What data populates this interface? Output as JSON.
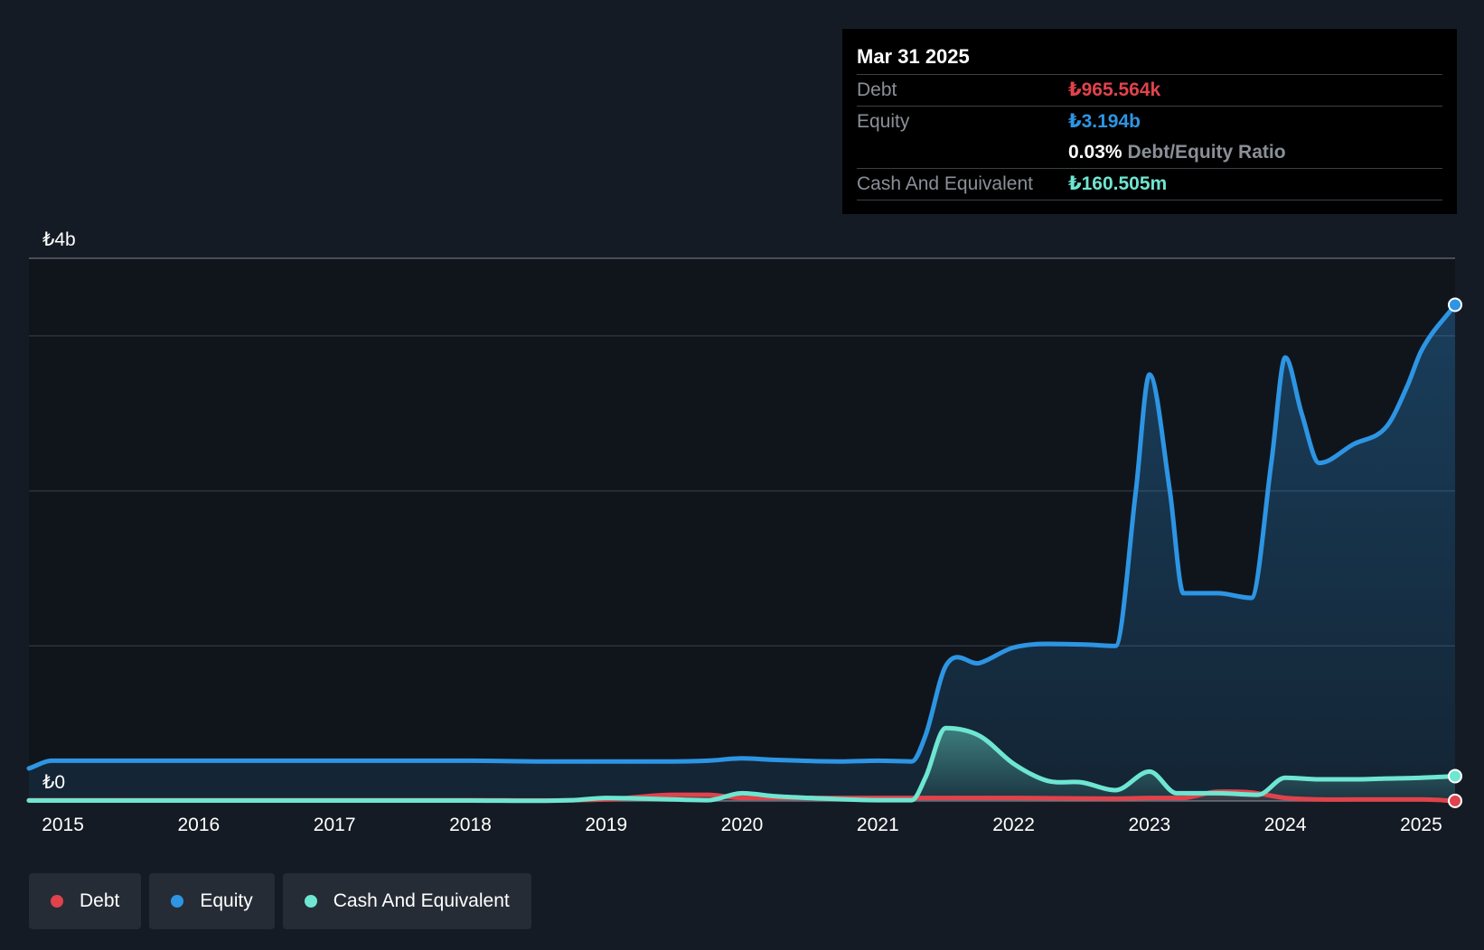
{
  "colors": {
    "background": "#151b24",
    "plot_background": "#10151c",
    "debt": "#e0434b",
    "equity": "#2d95e3",
    "cash": "#6ee6d1",
    "grid": "#2c323b"
  },
  "tooltip": {
    "date": "Mar 31 2025",
    "debt_label": "Debt",
    "debt_value": "₺965.564k",
    "equity_label": "Equity",
    "equity_value": "₺3.194b",
    "ratio_value": "0.03%",
    "ratio_label": "Debt/Equity Ratio",
    "cash_label": "Cash And Equivalent",
    "cash_value": "₺160.505m"
  },
  "legend": [
    {
      "label": "Debt",
      "color": "#e0434b"
    },
    {
      "label": "Equity",
      "color": "#2d95e3"
    },
    {
      "label": "Cash And Equivalent",
      "color": "#6ee6d1"
    }
  ],
  "chart_data": {
    "type": "area",
    "title": "",
    "xlabel": "",
    "ylabel": "",
    "y_unit": "₺ billions",
    "ylim": [
      0,
      3.5
    ],
    "y_tick_labels": [
      {
        "value": 0,
        "label": "₺0"
      },
      {
        "value": 3.5,
        "label": "₺4b"
      }
    ],
    "x_range": [
      2014.75,
      2025.25
    ],
    "x_ticks": [
      2015,
      2016,
      2017,
      2018,
      2019,
      2020,
      2021,
      2022,
      2023,
      2024,
      2025
    ],
    "gridlines": [
      0,
      1.0,
      2.0,
      3.0,
      3.5
    ],
    "legend_position": "bottom-left",
    "series": [
      {
        "name": "Equity",
        "points": [
          [
            2014.75,
            0.21
          ],
          [
            2014.92,
            0.26
          ],
          [
            2015.5,
            0.26
          ],
          [
            2016,
            0.26
          ],
          [
            2017,
            0.26
          ],
          [
            2018,
            0.26
          ],
          [
            2018.5,
            0.255
          ],
          [
            2019,
            0.255
          ],
          [
            2019.5,
            0.255
          ],
          [
            2019.75,
            0.26
          ],
          [
            2020,
            0.275
          ],
          [
            2020.25,
            0.265
          ],
          [
            2020.75,
            0.255
          ],
          [
            2021,
            0.26
          ],
          [
            2021.25,
            0.255
          ],
          [
            2021.35,
            0.42
          ],
          [
            2021.5,
            0.87
          ],
          [
            2021.75,
            0.89
          ],
          [
            2022,
            0.99
          ],
          [
            2022.5,
            1.01
          ],
          [
            2022.75,
            1.0
          ],
          [
            2022.9,
            2.0
          ],
          [
            2023,
            2.75
          ],
          [
            2023.15,
            2.0
          ],
          [
            2023.25,
            1.34
          ],
          [
            2023.5,
            1.34
          ],
          [
            2023.75,
            1.31
          ],
          [
            2023.9,
            2.2
          ],
          [
            2024,
            2.86
          ],
          [
            2024.12,
            2.5
          ],
          [
            2024.25,
            2.18
          ],
          [
            2024.5,
            2.3
          ],
          [
            2024.75,
            2.42
          ],
          [
            2024.9,
            2.68
          ],
          [
            2025,
            2.9
          ],
          [
            2025.25,
            3.2
          ]
        ]
      },
      {
        "name": "Debt",
        "points": [
          [
            2014.75,
            0.005
          ],
          [
            2018,
            0.005
          ],
          [
            2019,
            0.01
          ],
          [
            2019.5,
            0.04
          ],
          [
            2019.75,
            0.04
          ],
          [
            2020,
            0.02
          ],
          [
            2020.5,
            0.02
          ],
          [
            2021,
            0.02
          ],
          [
            2022,
            0.02
          ],
          [
            2022.75,
            0.015
          ],
          [
            2023,
            0.02
          ],
          [
            2023.25,
            0.02
          ],
          [
            2023.5,
            0.06
          ],
          [
            2023.75,
            0.055
          ],
          [
            2024,
            0.02
          ],
          [
            2024.5,
            0.01
          ],
          [
            2025,
            0.01
          ],
          [
            2025.25,
            0.001
          ]
        ]
      },
      {
        "name": "Cash And Equivalent",
        "points": [
          [
            2014.75,
            0.003
          ],
          [
            2018,
            0.003
          ],
          [
            2018.75,
            0.005
          ],
          [
            2019,
            0.02
          ],
          [
            2019.5,
            0.01
          ],
          [
            2019.75,
            0.005
          ],
          [
            2020,
            0.05
          ],
          [
            2020.25,
            0.03
          ],
          [
            2020.5,
            0.02
          ],
          [
            2021,
            0.005
          ],
          [
            2021.25,
            0.005
          ],
          [
            2021.35,
            0.15
          ],
          [
            2021.5,
            0.47
          ],
          [
            2021.75,
            0.42
          ],
          [
            2022,
            0.24
          ],
          [
            2022.25,
            0.13
          ],
          [
            2022.5,
            0.12
          ],
          [
            2022.75,
            0.07
          ],
          [
            2023,
            0.19
          ],
          [
            2023.2,
            0.05
          ],
          [
            2023.5,
            0.05
          ],
          [
            2023.8,
            0.04
          ],
          [
            2024,
            0.15
          ],
          [
            2024.25,
            0.14
          ],
          [
            2024.5,
            0.14
          ],
          [
            2024.75,
            0.145
          ],
          [
            2025,
            0.15
          ],
          [
            2025.25,
            0.16
          ]
        ]
      }
    ]
  }
}
